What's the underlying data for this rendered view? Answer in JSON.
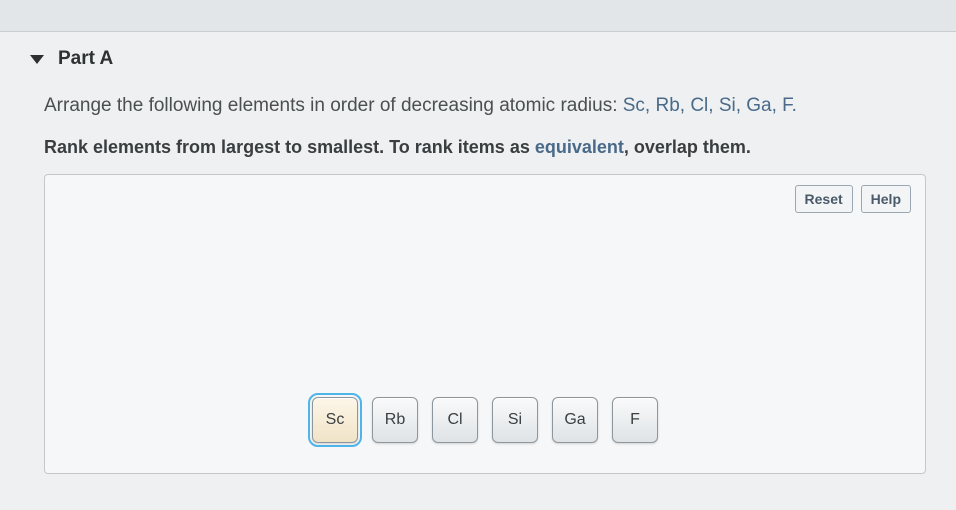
{
  "part": {
    "label": "Part A"
  },
  "question": {
    "prefix": "Arrange the following elements in order of decreasing atomic radius: ",
    "elements_list": "Sc, Rb, Cl, Si, Ga, F."
  },
  "instruction": {
    "prefix": "Rank elements from largest to smallest. To rank items as ",
    "equivalent_word": "equivalent",
    "suffix": ", overlap them."
  },
  "panel": {
    "reset_label": "Reset",
    "help_label": "Help"
  },
  "tiles": [
    {
      "symbol": "Sc",
      "selected": true
    },
    {
      "symbol": "Rb",
      "selected": false
    },
    {
      "symbol": "Cl",
      "selected": false
    },
    {
      "symbol": "Si",
      "selected": false
    },
    {
      "symbol": "Ga",
      "selected": false
    },
    {
      "symbol": "F",
      "selected": false
    }
  ],
  "colors": {
    "page_bg": "#eef0f1",
    "panel_bg": "#f6f7f8",
    "panel_border": "#c3c8cc",
    "tile_border": "#8d969d",
    "tile_selected_outline": "#4fb4e8",
    "highlight_text": "#4a6a8a"
  }
}
